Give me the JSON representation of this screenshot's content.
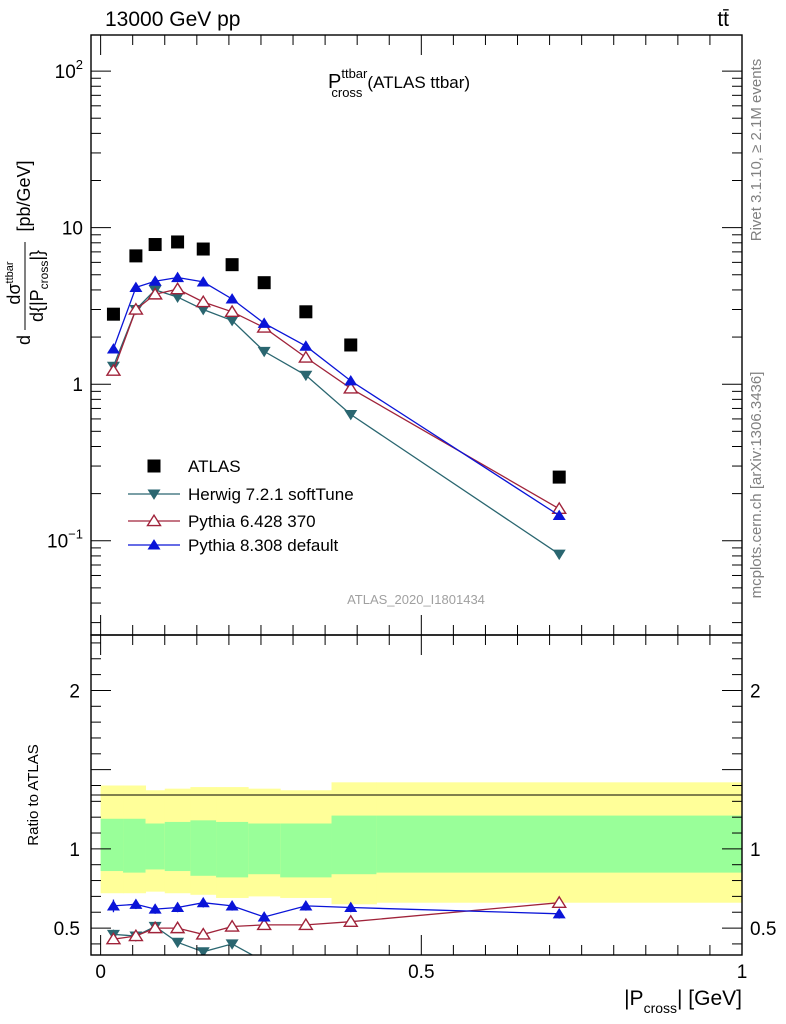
{
  "header": {
    "energy_label": "13000 GeV pp",
    "process_label": "tt̄"
  },
  "side_labels": {
    "rivet": "Rivet 3.1.10, ≥ 2.1M events",
    "mcplots": "mcplots.cern.ch [arXiv:1306.3436]"
  },
  "watermark": "ATLAS_2020_I1801434",
  "colors": {
    "data": "#000000",
    "herwig": "#2a6670",
    "pythia6": "#a0233a",
    "pythia8": "#0a14d8",
    "band_outer": "#ffff99",
    "band_inner": "#99ff99"
  },
  "chart_data": [
    {
      "type": "scatter",
      "panel": "main",
      "title": "P_cross^ttbar (ATLAS ttbar)",
      "title_main": "P",
      "title_sup": "ttbar",
      "title_sub": "cross",
      "title_rest": "(ATLAS ttbar)",
      "ylabel": "d dσ^ttbar / d{|P_cross|} [pb/GeV]",
      "ylabel_parts": {
        "prefix": "d",
        "num": "dσ",
        "num_sup": "ttbar",
        "den": "d{|P",
        "den_sub": "cross",
        "den_end": "|}",
        "unit": "[pb/GeV]"
      },
      "yscale": "log",
      "ylim": [
        0.025,
        170
      ],
      "xlim": [
        -0.015,
        1.0
      ],
      "y_ticks": [
        {
          "value": 100,
          "mantissa": "10",
          "exp": "2"
        },
        {
          "value": 10,
          "mantissa": "10",
          "exp": ""
        },
        {
          "value": 1,
          "mantissa": "1",
          "exp": ""
        },
        {
          "value": 0.1,
          "mantissa": "10",
          "exp": "−1"
        }
      ],
      "legend_position": "bottom-left",
      "series": [
        {
          "name": "ATLAS",
          "key": "data",
          "marker": "square",
          "x": [
            0.02,
            0.055,
            0.085,
            0.12,
            0.16,
            0.205,
            0.255,
            0.32,
            0.39,
            0.715
          ],
          "y": [
            2.8,
            6.6,
            7.8,
            8.1,
            7.3,
            5.8,
            4.45,
            2.9,
            1.78,
            0.255
          ]
        },
        {
          "name": "Herwig 7.2.1 softTune",
          "key": "herwig",
          "marker": "triangle-down",
          "x": [
            0.02,
            0.055,
            0.085,
            0.12,
            0.16,
            0.205,
            0.255,
            0.32,
            0.39,
            0.715
          ],
          "y": [
            1.3,
            3.0,
            4.0,
            3.6,
            3.0,
            2.55,
            1.62,
            1.14,
            0.64,
            0.082
          ]
        },
        {
          "name": "Pythia 6.428 370",
          "key": "pythia6",
          "marker": "triangle-up-open",
          "x": [
            0.02,
            0.055,
            0.085,
            0.12,
            0.16,
            0.205,
            0.255,
            0.32,
            0.39,
            0.715
          ],
          "y": [
            1.22,
            3.0,
            3.75,
            4.05,
            3.35,
            2.9,
            2.3,
            1.48,
            0.94,
            0.16
          ]
        },
        {
          "name": "Pythia 8.308 default",
          "key": "pythia8",
          "marker": "triangle-up",
          "x": [
            0.02,
            0.055,
            0.085,
            0.12,
            0.16,
            0.205,
            0.255,
            0.32,
            0.39,
            0.715
          ],
          "y": [
            1.68,
            4.15,
            4.55,
            4.8,
            4.5,
            3.5,
            2.45,
            1.75,
            1.05,
            0.145
          ]
        }
      ]
    },
    {
      "type": "line",
      "panel": "ratio",
      "xlabel": "|P_cross| [GeV]",
      "xlabel_parts": {
        "main": "|P",
        "sub": "cross",
        "end": "| [GeV]"
      },
      "ylabel": "Ratio to ATLAS",
      "ylim": [
        0.33,
        2.35
      ],
      "xlim": [
        -0.015,
        1.0
      ],
      "y_ticks": [
        {
          "value": 2,
          "label": "2"
        },
        {
          "value": 1,
          "label": "1"
        },
        {
          "value": 0.5,
          "label": "0.5"
        }
      ],
      "x_ticks": [
        {
          "value": 0,
          "label": "0"
        },
        {
          "value": 0.5,
          "label": "0.5"
        },
        {
          "value": 1,
          "label": "1"
        }
      ],
      "band_edges": [
        0.0,
        0.035,
        0.07,
        0.1,
        0.14,
        0.18,
        0.23,
        0.28,
        0.36,
        0.43,
        1.0
      ],
      "band_outer_low": [
        0.72,
        0.72,
        0.73,
        0.72,
        0.71,
        0.69,
        0.7,
        0.69,
        0.65,
        0.66
      ],
      "band_outer_high": [
        1.4,
        1.4,
        1.37,
        1.38,
        1.39,
        1.39,
        1.38,
        1.37,
        1.42,
        1.42
      ],
      "band_inner_low": [
        0.86,
        0.85,
        0.87,
        0.86,
        0.83,
        0.82,
        0.84,
        0.82,
        0.84,
        0.85
      ],
      "band_inner_high": [
        1.19,
        1.19,
        1.16,
        1.17,
        1.18,
        1.17,
        1.16,
        1.16,
        1.21,
        1.21
      ],
      "series": [
        {
          "name": "Herwig 7.2.1 softTune",
          "key": "herwig",
          "marker": "triangle-down",
          "x": [
            0.02,
            0.055,
            0.085,
            0.12,
            0.16,
            0.205
          ],
          "y": [
            0.46,
            0.45,
            0.51,
            0.41,
            0.35,
            0.4
          ],
          "err": [
            0.03,
            0.03,
            0.02,
            0.02,
            0.02,
            0.02
          ]
        },
        {
          "name": "Pythia 6.428 370",
          "key": "pythia6",
          "marker": "triangle-up-open",
          "x": [
            0.02,
            0.055,
            0.085,
            0.12,
            0.16,
            0.205,
            0.255,
            0.32,
            0.39,
            0.715
          ],
          "y": [
            0.43,
            0.45,
            0.5,
            0.5,
            0.46,
            0.51,
            0.52,
            0.52,
            0.54,
            0.66
          ],
          "err": [
            0.03,
            0.02,
            0.02,
            0.02,
            0.02,
            0.02,
            0.02,
            0.02,
            0.03,
            0.02
          ]
        },
        {
          "name": "Pythia 8.308 default",
          "key": "pythia8",
          "marker": "triangle-up",
          "x": [
            0.02,
            0.055,
            0.085,
            0.12,
            0.16,
            0.205,
            0.255,
            0.32,
            0.39,
            0.715
          ],
          "y": [
            0.64,
            0.65,
            0.62,
            0.63,
            0.66,
            0.64,
            0.57,
            0.64,
            0.63,
            0.59
          ],
          "err": [
            0.04,
            0.03,
            0.03,
            0.03,
            0.03,
            0.03,
            0.03,
            0.03,
            0.03,
            0.03
          ]
        }
      ]
    }
  ]
}
